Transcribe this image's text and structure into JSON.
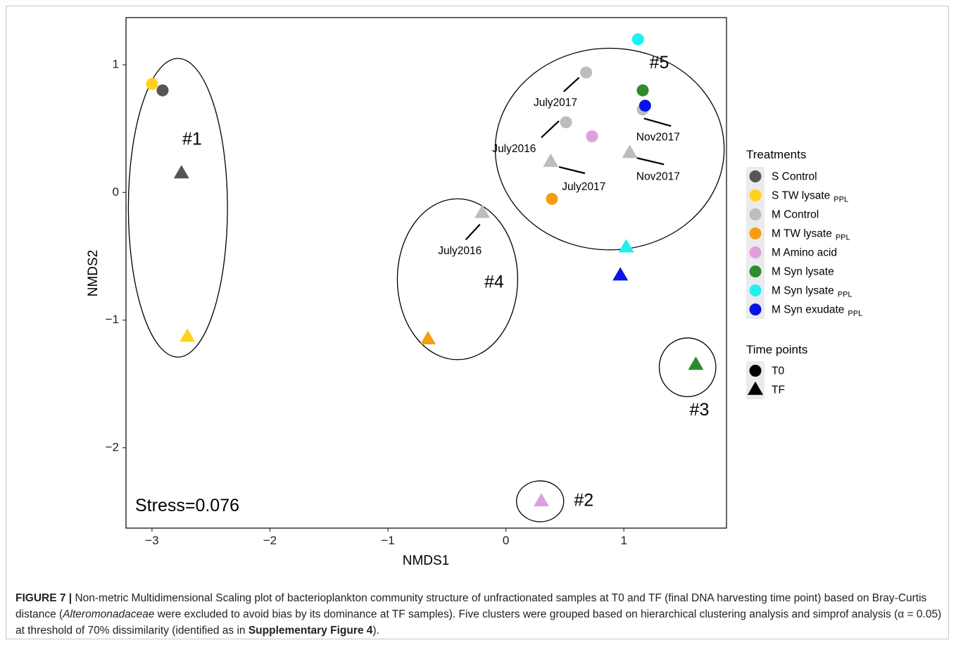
{
  "chart_data": {
    "type": "scatter",
    "xlabel": "NMDS1",
    "ylabel": "NMDS2",
    "xlim": [
      -3.22,
      1.87
    ],
    "ylim": [
      -2.63,
      1.37
    ],
    "x_ticks": [
      -3,
      -2,
      -1,
      0,
      1
    ],
    "y_ticks": [
      1,
      0,
      -1,
      -2
    ],
    "x_tick_labels": [
      "−3",
      "−2",
      "−1",
      "0",
      "1"
    ],
    "y_tick_labels": [
      "1",
      "0",
      "−1",
      "−2"
    ],
    "grid": false,
    "stress_label": "Stress=0.076",
    "legend": {
      "position": "right",
      "treatments_title": "Treatments",
      "treatments": [
        {
          "label": "S Control",
          "sub": "",
          "color": "#555555"
        },
        {
          "label": "S TW lysate",
          "sub": "PPL",
          "color": "#FFD21A"
        },
        {
          "label": "M Control",
          "sub": "",
          "color": "#BDBDBD"
        },
        {
          "label": "M TW lysate",
          "sub": "PPL",
          "color": "#F59E10"
        },
        {
          "label": "M Amino acid",
          "sub": "",
          "color": "#DDA0DD"
        },
        {
          "label": "M Syn lysate",
          "sub": "",
          "color": "#2E8B2E"
        },
        {
          "label": "M Syn lysate",
          "sub": "PPL",
          "color": "#1FF0F0"
        },
        {
          "label": "M Syn exudate",
          "sub": "PPL",
          "color": "#0A14E6"
        }
      ],
      "time_title": "Time points",
      "time_points": [
        {
          "label": "T0",
          "shape": "circle"
        },
        {
          "label": "TF",
          "shape": "triangle"
        }
      ]
    },
    "points": [
      {
        "x": -3.0,
        "y": 0.85,
        "treatment": "S TW lysate PPL",
        "time": "T0",
        "color": "#FFD21A"
      },
      {
        "x": -2.91,
        "y": 0.8,
        "treatment": "S Control",
        "time": "T0",
        "color": "#555555"
      },
      {
        "x": -2.75,
        "y": 0.15,
        "treatment": "S Control",
        "time": "TF",
        "color": "#555555"
      },
      {
        "x": -2.7,
        "y": -1.13,
        "treatment": "S TW lysate PPL",
        "time": "TF",
        "color": "#FFD21A"
      },
      {
        "x": -0.2,
        "y": -0.16,
        "treatment": "M Control",
        "time": "TF",
        "color": "#BDBDBD"
      },
      {
        "x": -0.66,
        "y": -1.15,
        "treatment": "M TW lysate PPL",
        "time": "TF",
        "color": "#F59E10"
      },
      {
        "x": 0.3,
        "y": -2.42,
        "treatment": "M Amino acid",
        "time": "TF",
        "color": "#DDA0DD"
      },
      {
        "x": 0.68,
        "y": 0.94,
        "treatment": "M Control",
        "time": "T0",
        "color": "#BDBDBD"
      },
      {
        "x": 0.51,
        "y": 0.55,
        "treatment": "M Control",
        "time": "T0",
        "color": "#BDBDBD"
      },
      {
        "x": 0.73,
        "y": 0.44,
        "treatment": "M Amino acid",
        "time": "T0",
        "color": "#DDA0DD"
      },
      {
        "x": 0.38,
        "y": 0.24,
        "treatment": "M Control",
        "time": "TF",
        "color": "#BDBDBD"
      },
      {
        "x": 0.39,
        "y": -0.05,
        "treatment": "M TW lysate PPL",
        "time": "T0",
        "color": "#F59E10"
      },
      {
        "x": 1.12,
        "y": 1.2,
        "treatment": "M Syn lysate PPL",
        "time": "T0",
        "color": "#1FF0F0"
      },
      {
        "x": 1.16,
        "y": 0.8,
        "treatment": "M Syn lysate",
        "time": "T0",
        "color": "#2E8B2E"
      },
      {
        "x": 1.16,
        "y": 0.65,
        "treatment": "M Control",
        "time": "T0",
        "color": "#BDBDBD"
      },
      {
        "x": 1.18,
        "y": 0.68,
        "treatment": "M Syn exudate PPL",
        "time": "T0",
        "color": "#0A14E6"
      },
      {
        "x": 1.05,
        "y": 0.31,
        "treatment": "M Control",
        "time": "TF",
        "color": "#BDBDBD"
      },
      {
        "x": 1.02,
        "y": -0.43,
        "treatment": "M Syn lysate PPL",
        "time": "TF",
        "color": "#1FF0F0"
      },
      {
        "x": 0.97,
        "y": -0.65,
        "treatment": "M Syn exudate PPL",
        "time": "TF",
        "color": "#0A14E6"
      },
      {
        "x": 1.61,
        "y": -1.35,
        "treatment": "M Syn lysate",
        "time": "TF",
        "color": "#2E8B2E"
      }
    ],
    "clusters": [
      {
        "label": "#1",
        "cx": -2.78,
        "cy": -0.12,
        "rx": 0.42,
        "ry": 1.17
      },
      {
        "label": "#2",
        "cx": 0.29,
        "cy": -2.42,
        "rx": 0.2,
        "ry": 0.16
      },
      {
        "label": "#3",
        "cx": 1.54,
        "cy": -1.37,
        "rx": 0.24,
        "ry": 0.23
      },
      {
        "label": "#4",
        "cx": -0.41,
        "cy": -0.68,
        "rx": 0.51,
        "ry": 0.63
      },
      {
        "label": "#5",
        "cx": 0.88,
        "cy": 0.34,
        "rx": 0.97,
        "ry": 0.79
      }
    ],
    "cluster_label_positions": [
      {
        "label": "#1",
        "x": -2.66,
        "y": 0.41
      },
      {
        "label": "#2",
        "x": 0.66,
        "y": -2.42
      },
      {
        "label": "#3",
        "x": 1.64,
        "y": -1.71
      },
      {
        "label": "#4",
        "x": -0.1,
        "y": -0.71
      },
      {
        "label": "#5",
        "x": 1.3,
        "y": 1.01
      }
    ],
    "annotations": [
      {
        "text": "July2017",
        "tx": 0.42,
        "ty": 0.7,
        "x1": 0.49,
        "y1": 0.79,
        "x2": 0.62,
        "y2": 0.9
      },
      {
        "text": "July2016",
        "tx": 0.07,
        "ty": 0.34,
        "x1": 0.3,
        "y1": 0.43,
        "x2": 0.45,
        "y2": 0.56
      },
      {
        "text": "July2017",
        "tx": 0.66,
        "ty": 0.04,
        "x1": 0.45,
        "y1": 0.2,
        "x2": 0.67,
        "y2": 0.15
      },
      {
        "text": "Nov2017",
        "tx": 1.29,
        "ty": 0.43,
        "x1": 1.17,
        "y1": 0.58,
        "x2": 1.4,
        "y2": 0.52
      },
      {
        "text": "Nov2017",
        "tx": 1.29,
        "ty": 0.12,
        "x1": 1.11,
        "y1": 0.27,
        "x2": 1.34,
        "y2": 0.22
      },
      {
        "text": "July2016",
        "tx": -0.39,
        "ty": -0.46,
        "x1": -0.34,
        "y1": -0.37,
        "x2": -0.22,
        "y2": -0.25
      }
    ]
  },
  "caption": {
    "fig_label": "FIGURE 7 |",
    "part1": " Non-metric Multidimensional Scaling plot of bacterioplankton community structure of unfractionated samples at T0 and TF (final DNA harvesting time point) based on Bray-Curtis distance (",
    "italic": "Alteromonadaceae",
    "part2": " were excluded to avoid bias by its dominance at TF samples). Five clusters were grouped based on hierarchical clustering analysis and simprof analysis (α = 0.05) at threshold of 70% dissimilarity (identified as in ",
    "bold_ref": "Supplementary Figure 4",
    "part3": ")."
  }
}
